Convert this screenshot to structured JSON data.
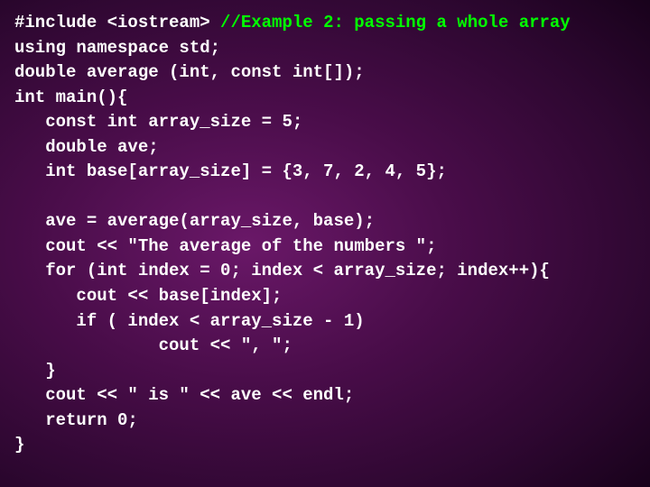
{
  "code": {
    "line1a": "#include <iostream> ",
    "line1b": "//Example 2: passing a whole array",
    "line2": "using namespace std;",
    "line3": "double average (int, const int[]);",
    "line4": "int main(){",
    "line5": "   const int array_size = 5;",
    "line6": "   double ave;",
    "line7": "   int base[array_size] = {3, 7, 2, 4, 5};",
    "blank": "",
    "line8": "   ave = average(array_size, base);",
    "line9": "   cout << \"The average of the numbers \";",
    "line10": "   for (int index = 0; index < array_size; index++){",
    "line11": "      cout << base[index];",
    "line12": "      if ( index < array_size - 1)",
    "line13": "              cout << \", \";",
    "line14": "   }",
    "line15": "   cout << \" is \" << ave << endl;",
    "line16": "   return 0;",
    "line17": "}"
  },
  "style": {
    "font_family": "Courier New",
    "font_size_pt": 14,
    "font_weight": "bold",
    "text_color": "#ffffff",
    "comment_color": "#00ff00",
    "bg_gradient_center": "#6a1868",
    "bg_gradient_outer": "#120015",
    "line_height": 1.45
  }
}
